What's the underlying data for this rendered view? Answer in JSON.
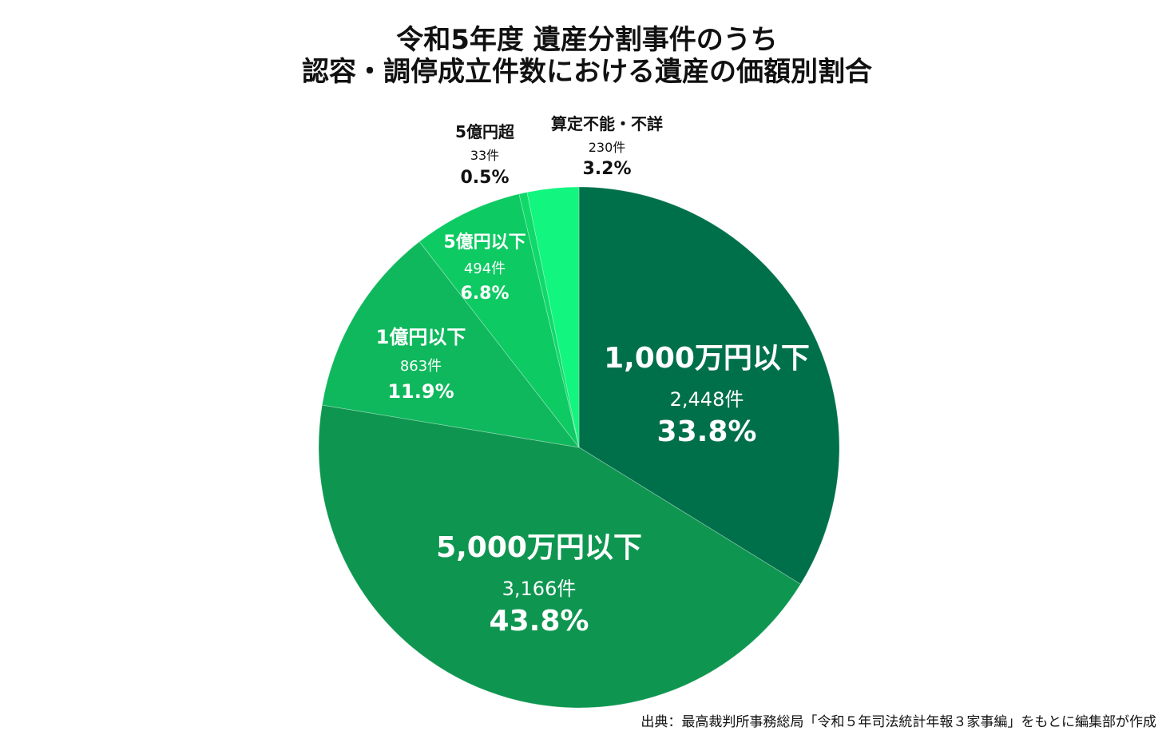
{
  "chart_data": {
    "type": "pie",
    "title_lines": [
      "令和5年度 遺産分割事件のうち",
      "認容・調停成立件数における遺産の価額別割合"
    ],
    "slices": [
      {
        "label": "1,000万円以下",
        "count": "2,448件",
        "percent_label": "33.8%",
        "value": 33.8,
        "color": "#00704a"
      },
      {
        "label": "5,000万円以下",
        "count": "3,166件",
        "percent_label": "43.8%",
        "value": 43.8,
        "color": "#0e9650"
      },
      {
        "label": "1億円以下",
        "count": "863件",
        "percent_label": "11.9%",
        "value": 11.9,
        "color": "#0fb85d"
      },
      {
        "label": "5億円以下",
        "count": "494件",
        "percent_label": "6.8%",
        "value": 6.8,
        "color": "#0dca63"
      },
      {
        "label": "5億円超",
        "count": "33件",
        "percent_label": "0.5%",
        "value": 0.5,
        "color": "#10d96a"
      },
      {
        "label": "算定不能・不詳",
        "count": "230件",
        "percent_label": "3.2%",
        "value": 3.2,
        "color": "#12f57e"
      }
    ]
  },
  "source": "出典：最高裁判所事務総局「令和５年司法統計年報３家事編」をもとに編集部が作成"
}
